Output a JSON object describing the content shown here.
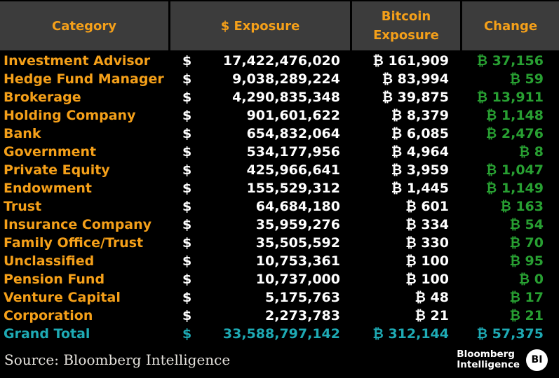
{
  "colors": {
    "header_bg": "#3c3c3c",
    "orange": "#f5a019",
    "white": "#ffffff",
    "green": "#28a032",
    "teal": "#1eaab4",
    "black": "#000000",
    "source_text": "#e6e3de"
  },
  "table": {
    "currency_symbol": "$",
    "btc_symbol": "₿",
    "headers": [
      {
        "label": "Category"
      },
      {
        "label": "$ Exposure"
      },
      {
        "label": "Bitcoin Exposure"
      },
      {
        "label": "Change"
      }
    ],
    "rows": [
      {
        "category": "Investment Advisor",
        "usd": "17,422,476,020",
        "btc": "161,909",
        "change": "37,156",
        "total": false
      },
      {
        "category": "Hedge Fund Manager",
        "usd": "9,038,289,224",
        "btc": "83,994",
        "change": "59",
        "total": false
      },
      {
        "category": "Brokerage",
        "usd": "4,290,835,348",
        "btc": "39,875",
        "change": "13,911",
        "total": false
      },
      {
        "category": "Holding Company",
        "usd": "901,601,622",
        "btc": "8,379",
        "change": "1,148",
        "total": false
      },
      {
        "category": "Bank",
        "usd": "654,832,064",
        "btc": "6,085",
        "change": "2,476",
        "total": false
      },
      {
        "category": "Government",
        "usd": "534,177,956",
        "btc": "4,964",
        "change": "8",
        "total": false
      },
      {
        "category": "Private Equity",
        "usd": "425,966,641",
        "btc": "3,959",
        "change": "1,047",
        "total": false
      },
      {
        "category": "Endowment",
        "usd": "155,529,312",
        "btc": "1,445",
        "change": "1,149",
        "total": false
      },
      {
        "category": "Trust",
        "usd": "64,684,180",
        "btc": "601",
        "change": "163",
        "total": false
      },
      {
        "category": "Insurance Company",
        "usd": "35,959,276",
        "btc": "334",
        "change": "54",
        "total": false
      },
      {
        "category": "Family Office/Trust",
        "usd": "35,505,592",
        "btc": "330",
        "change": "70",
        "total": false
      },
      {
        "category": "Unclassified",
        "usd": "10,753,361",
        "btc": "100",
        "change": "95",
        "total": false
      },
      {
        "category": "Pension Fund",
        "usd": "10,737,000",
        "btc": "100",
        "change": "0",
        "total": false
      },
      {
        "category": "Venture Capital",
        "usd": "5,175,763",
        "btc": "48",
        "change": "17",
        "total": false
      },
      {
        "category": "Corporation",
        "usd": "2,273,783",
        "btc": "21",
        "change": "21",
        "total": false
      },
      {
        "category": "Grand Total",
        "usd": "33,588,797,142",
        "btc": "312,144",
        "change": "57,375",
        "total": true
      }
    ]
  },
  "footer": {
    "source": "Source: Bloomberg Intelligence",
    "logo_line1": "Bloomberg",
    "logo_line2": "Intelligence",
    "logo_badge": "BI"
  },
  "chart_data": {
    "type": "table",
    "title": "Bitcoin Exposure by Institution Category",
    "columns": [
      "Category",
      "$ Exposure",
      "Bitcoin Exposure",
      "Change"
    ],
    "rows": [
      [
        "Investment Advisor",
        17422476020,
        161909,
        37156
      ],
      [
        "Hedge Fund Manager",
        9038289224,
        83994,
        59
      ],
      [
        "Brokerage",
        4290835348,
        39875,
        13911
      ],
      [
        "Holding Company",
        901601622,
        8379,
        1148
      ],
      [
        "Bank",
        654832064,
        6085,
        2476
      ],
      [
        "Government",
        534177956,
        4964,
        8
      ],
      [
        "Private Equity",
        425966641,
        3959,
        1047
      ],
      [
        "Endowment",
        155529312,
        1445,
        1149
      ],
      [
        "Trust",
        64684180,
        601,
        163
      ],
      [
        "Insurance Company",
        35959276,
        334,
        54
      ],
      [
        "Family Office/Trust",
        35505592,
        330,
        70
      ],
      [
        "Unclassified",
        10753361,
        100,
        95
      ],
      [
        "Pension Fund",
        10737000,
        100,
        0
      ],
      [
        "Venture Capital",
        5175763,
        48,
        17
      ],
      [
        "Corporation",
        2273783,
        21,
        21
      ]
    ],
    "grand_total": [
      "Grand Total",
      33588797142,
      312144,
      57375
    ],
    "units": {
      "dollar_column": "USD",
      "bitcoin_columns": "BTC"
    },
    "source": "Source: Bloomberg Intelligence"
  }
}
